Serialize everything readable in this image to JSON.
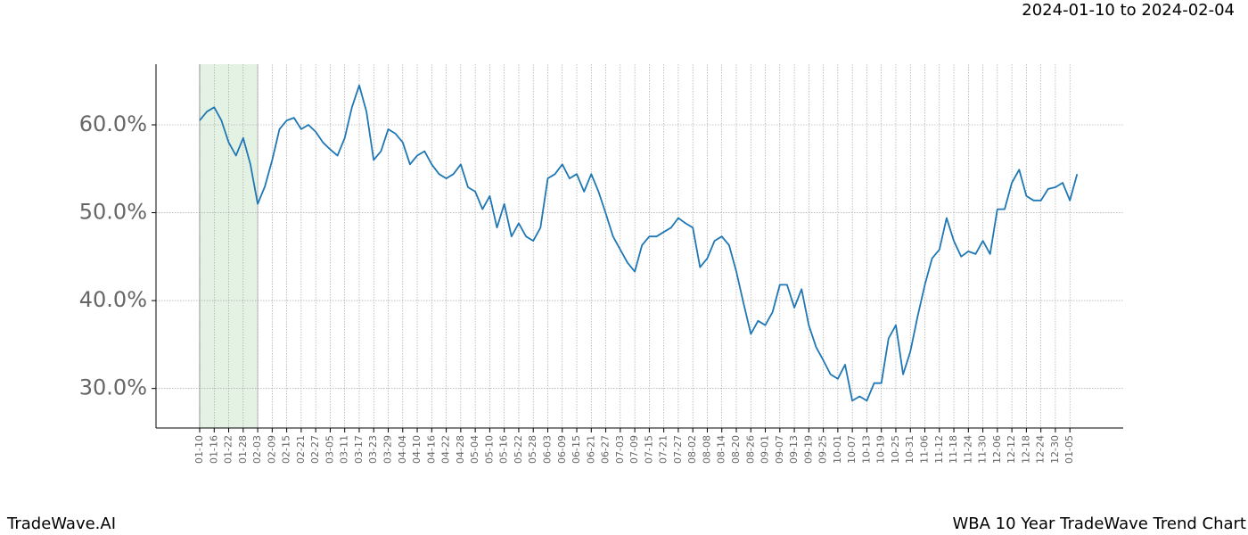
{
  "chart_data": {
    "type": "line",
    "header": "2024-01-10 to 2024-02-04",
    "footer_left": "TradeWave.AI",
    "footer_right": "WBA 10 Year TradeWave Trend Chart",
    "x": [
      "01-10",
      null,
      "01-16",
      null,
      "01-22",
      null,
      "01-28",
      null,
      "02-03",
      null,
      "02-09",
      null,
      "02-15",
      null,
      "02-21",
      null,
      "02-27",
      null,
      "03-05",
      null,
      "03-11",
      null,
      "03-17",
      null,
      "03-23",
      null,
      "03-29",
      null,
      "04-04",
      null,
      "04-10",
      null,
      "04-16",
      null,
      "04-22",
      null,
      "04-28",
      null,
      "05-04",
      null,
      "05-10",
      null,
      "05-16",
      null,
      "05-22",
      null,
      "05-28",
      null,
      "06-03",
      null,
      "06-09",
      null,
      "06-15",
      null,
      "06-21",
      null,
      "06-27",
      null,
      "07-03",
      null,
      "07-09",
      null,
      "07-15",
      null,
      "07-21",
      null,
      "07-27",
      null,
      "08-02",
      null,
      "08-08",
      null,
      "08-14",
      null,
      "08-20",
      null,
      "08-26",
      null,
      "09-01",
      null,
      "09-07",
      null,
      "09-13",
      null,
      "09-19",
      null,
      "09-25",
      null,
      "10-01",
      null,
      "10-07",
      null,
      "10-13",
      null,
      "10-19",
      null,
      "10-25",
      null,
      "10-31",
      null,
      "11-06",
      null,
      "11-12",
      null,
      "11-18",
      null,
      "11-24",
      null,
      "11-30",
      null,
      "12-06",
      null,
      "12-12",
      null,
      "12-18",
      null,
      "12-24",
      null,
      "12-30",
      null,
      "01-05",
      null
    ],
    "values": [
      60.5,
      61.5,
      62,
      60.5,
      58,
      56.5,
      58.5,
      55.5,
      51,
      53,
      56,
      59.5,
      60.5,
      60.8,
      59.5,
      60,
      59.2,
      58,
      57.2,
      56.5,
      58.5,
      62,
      64.5,
      61.5,
      56,
      57,
      59.5,
      59,
      58,
      55.5,
      56.5,
      57,
      55.5,
      54.4,
      53.9,
      54.4,
      55.5,
      52.9,
      52.4,
      50.4,
      51.9,
      48.3,
      51,
      47.3,
      48.8,
      47.3,
      46.8,
      48.3,
      53.9,
      54.4,
      55.5,
      53.9,
      54.4,
      52.4,
      54.4,
      52.4,
      49.9,
      47.3,
      45.8,
      44.3,
      43.3,
      46.3,
      47.3,
      47.3,
      47.8,
      48.3,
      49.4,
      48.8,
      48.3,
      43.8,
      44.8,
      46.8,
      47.3,
      46.3,
      43.3,
      39.7,
      36.2,
      37.7,
      37.2,
      38.7,
      41.8,
      41.8,
      39.2,
      41.3,
      37.2,
      34.7,
      33.2,
      31.6,
      31.1,
      32.7,
      28.6,
      29.1,
      28.6,
      30.6,
      30.6,
      35.7,
      37.2,
      31.6,
      34.2,
      38.2,
      41.8,
      44.8,
      45.8,
      49.4,
      46.8,
      45,
      45.6,
      45.3,
      46.8,
      45.3,
      50.4,
      50.4,
      53.4,
      54.9,
      51.9,
      51.4,
      51.4,
      52.7,
      52.9,
      53.4,
      51.4,
      54.4
    ],
    "color": "#1f77b4",
    "highlight": {
      "from": "01-10",
      "to": "02-03",
      "color": "#d9ecd9"
    },
    "ylim": [
      25.5,
      66.9
    ],
    "yticks": [
      {
        "value": 30,
        "label": "30.0%"
      },
      {
        "value": 40,
        "label": "40.0%"
      },
      {
        "value": 50,
        "label": "50.0%"
      },
      {
        "value": 60,
        "label": "60.0%"
      }
    ],
    "grid": true
  }
}
